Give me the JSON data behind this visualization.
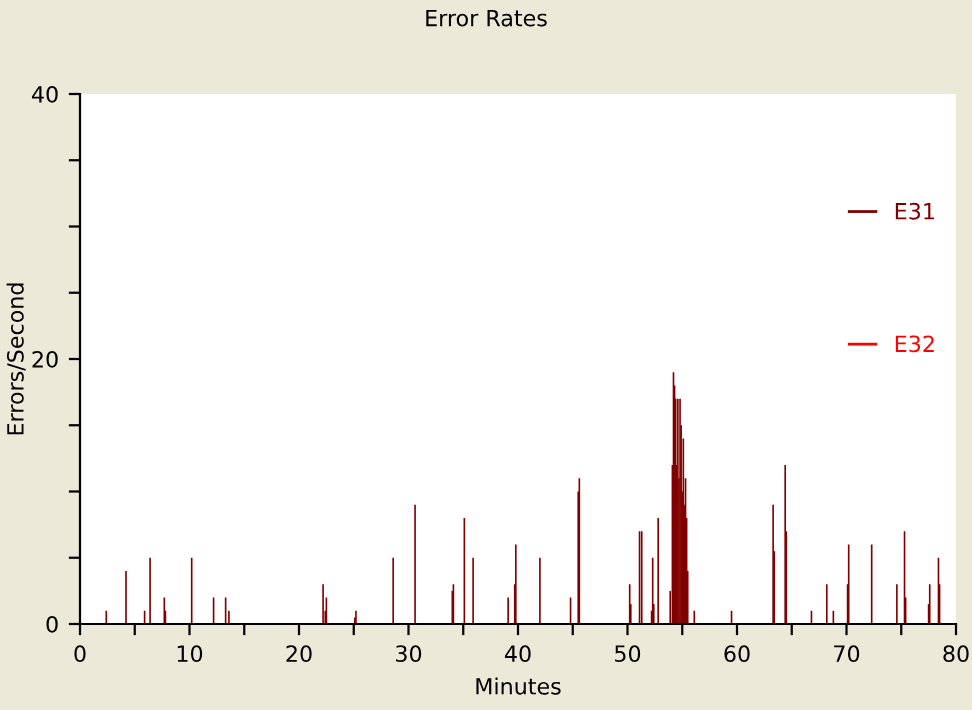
{
  "chart_data": {
    "type": "bar",
    "title": "Error Rates",
    "xlabel": "Minutes",
    "ylabel": "Errors/Second",
    "xlim": [
      0,
      80
    ],
    "ylim": [
      0,
      40
    ],
    "xticks": [
      0,
      {
        "value": 5,
        "label": null
      },
      10,
      {
        "value": 15,
        "label": null
      },
      20,
      {
        "value": 25,
        "label": null
      },
      30,
      {
        "value": 35,
        "label": null
      },
      40,
      {
        "value": 45,
        "label": null
      },
      50,
      {
        "value": 55,
        "label": null
      },
      60,
      {
        "value": 65,
        "label": null
      },
      70,
      {
        "value": 75,
        "label": null
      },
      80
    ],
    "yticks": [
      0,
      {
        "value": 5,
        "label": null
      },
      {
        "value": 10,
        "label": null
      },
      {
        "value": 15,
        "label": null
      },
      20,
      {
        "value": 25,
        "label": null
      },
      {
        "value": 30,
        "label": null
      },
      {
        "value": 35,
        "label": null
      },
      40
    ],
    "grid": false,
    "legend": "right",
    "series": [
      {
        "name": "E31",
        "color": "#800000",
        "x": [
          2.4,
          4.2,
          5.9,
          6.4,
          7.7,
          7.8,
          10.2,
          12.2,
          13.3,
          13.6,
          22.2,
          22.4,
          22.5,
          25.1,
          25.2,
          28.6,
          30.6,
          34.0,
          34.1,
          35.1,
          35.9,
          39.1,
          39.7,
          39.8,
          42.0,
          44.8,
          45.5,
          45.6,
          50.2,
          50.3,
          51.1,
          51.3,
          52.2,
          52.3,
          52.4,
          52.8,
          53.9,
          54.1,
          54.2,
          54.3,
          54.4,
          54.5,
          54.6,
          54.7,
          54.8,
          54.9,
          55.0,
          55.1,
          55.2,
          55.3,
          55.4,
          55.5,
          56.1,
          59.5,
          63.3,
          63.4,
          64.4,
          64.5,
          66.8,
          68.2,
          68.8,
          70.1,
          70.2,
          72.3,
          74.6,
          75.3,
          75.4,
          77.5,
          77.6,
          78.4,
          78.5
        ],
        "values": [
          1,
          4,
          1,
          5,
          2,
          1,
          5,
          2,
          2,
          1,
          3,
          1,
          2,
          0.5,
          1,
          5,
          9,
          2.5,
          3,
          8,
          5,
          2,
          3,
          6,
          5,
          2,
          10,
          11,
          3,
          1.5,
          7,
          7,
          1,
          5,
          1.5,
          8,
          2.5,
          12,
          19,
          18,
          17,
          12,
          17,
          11,
          17,
          15,
          10,
          14,
          9,
          11,
          8,
          4,
          1,
          1,
          9,
          5.5,
          12,
          7,
          1,
          3,
          1,
          3,
          6,
          6,
          3,
          7,
          2,
          1.5,
          3,
          5,
          3
        ]
      },
      {
        "name": "E32",
        "color": "#ff0000"
      }
    ]
  }
}
